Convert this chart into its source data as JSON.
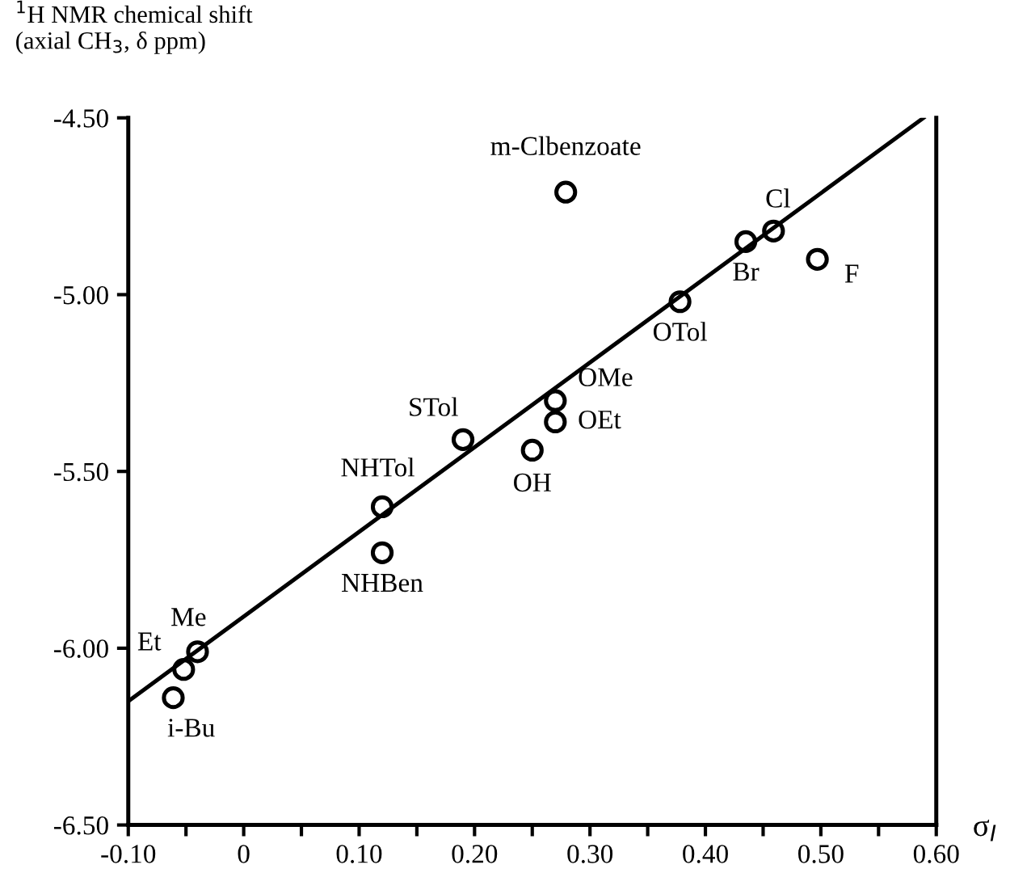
{
  "chart_data": {
    "type": "scatter",
    "ylabel": "$^{1}$H NMR chemical shift\n(axial CH$_{3}$, δ ppm)",
    "xlabel": "σ$_{I}$",
    "xlim": [
      -0.1,
      0.6
    ],
    "ylim": [
      -6.5,
      -4.5
    ],
    "xticks": [
      {
        "value": -0.1,
        "label": "-0.10"
      },
      0,
      {
        "value": 0.05,
        "label": null
      },
      {
        "value": 0.1,
        "label": "0.10"
      },
      {
        "value": 0.15,
        "label": null
      },
      {
        "value": 0.2,
        "label": "0.20"
      },
      {
        "value": 0.25,
        "label": null
      },
      {
        "value": 0.3,
        "label": "0.30"
      },
      {
        "value": 0.35,
        "label": null
      },
      {
        "value": 0.4,
        "label": "0.40"
      },
      {
        "value": 0.45,
        "label": null
      },
      {
        "value": 0.5,
        "label": "0.50"
      },
      {
        "value": 0.55,
        "label": null
      },
      {
        "value": 0.6,
        "label": "0.60"
      },
      {
        "value": -0.05,
        "label": null
      }
    ],
    "yticks": [
      {
        "value": -6.5,
        "label": "-6.50"
      },
      {
        "value": -6.0,
        "label": "-6.00"
      },
      {
        "value": -5.5,
        "label": "-5.50"
      },
      {
        "value": -5.0,
        "label": "-5.00"
      },
      {
        "value": -4.5,
        "label": "-4.50"
      }
    ],
    "grid": false,
    "series": [
      {
        "marker": "circle",
        "color": "#000000",
        "x": [
          0.279,
          0.459,
          0.435,
          0.497,
          0.378,
          0.27,
          0.27,
          0.25,
          0.19,
          0.12,
          0.12,
          -0.04,
          -0.052,
          -0.061
        ],
        "values": [
          -4.71,
          -4.82,
          -4.85,
          -4.9,
          -5.02,
          -5.3,
          -5.36,
          -5.44,
          -5.41,
          -5.6,
          -5.73,
          -6.01,
          -6.06,
          -6.14
        ]
      },
      {
        "type": "line",
        "marker": "none",
        "line_style": "solid",
        "color": "#000000",
        "x": [
          -0.1,
          0.589
        ],
        "values": [
          -6.15,
          -4.5
        ]
      }
    ],
    "annotations": [
      {
        "text": "m-Clbenzoate",
        "x": 0.279,
        "y": -4.71
      },
      {
        "text": "Cl",
        "x": 0.459,
        "y": -4.82
      },
      {
        "text": "Br",
        "x": 0.435,
        "y": -4.85
      },
      {
        "text": "F",
        "x": 0.497,
        "y": -4.9
      },
      {
        "text": "OTol",
        "x": 0.378,
        "y": -5.02
      },
      {
        "text": "OMe",
        "x": 0.27,
        "y": -5.3
      },
      {
        "text": "OEt",
        "x": 0.27,
        "y": -5.36
      },
      {
        "text": "OH",
        "x": 0.25,
        "y": -5.44
      },
      {
        "text": "STol",
        "x": 0.19,
        "y": -5.41
      },
      {
        "text": "NHTol",
        "x": 0.12,
        "y": -5.6
      },
      {
        "text": "NHBen",
        "x": 0.12,
        "y": -5.73
      },
      {
        "text": "Me",
        "x": -0.04,
        "y": -6.01
      },
      {
        "text": "Et",
        "x": -0.052,
        "y": -6.06
      },
      {
        "text": "i-Bu",
        "x": -0.061,
        "y": -6.14
      }
    ]
  }
}
